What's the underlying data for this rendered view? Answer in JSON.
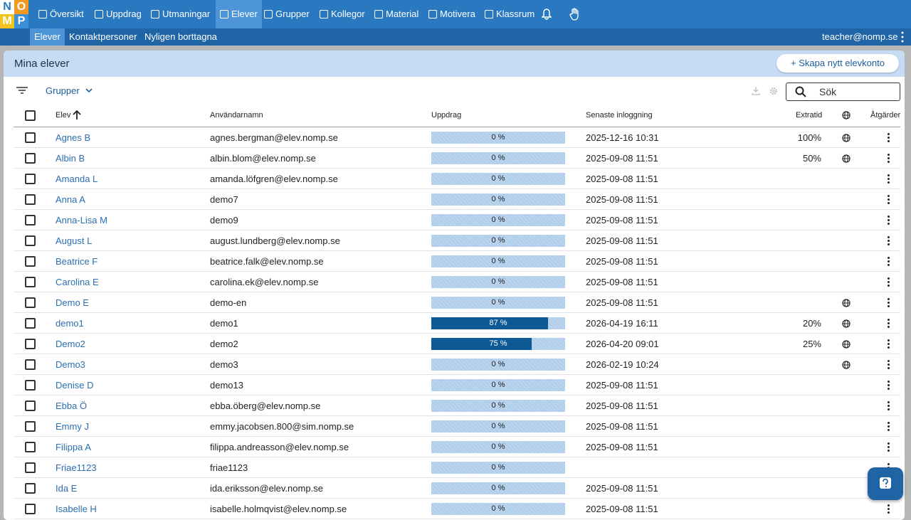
{
  "logo": [
    "N",
    "O",
    "M",
    "P"
  ],
  "nav": {
    "items": [
      "Översikt",
      "Uppdrag",
      "Utmaningar",
      "Elever",
      "Grupper",
      "Kollegor",
      "Material",
      "Motivera",
      "Klassrum"
    ],
    "active": 3
  },
  "subnav": {
    "items": [
      "Elever",
      "Kontaktpersoner",
      "Nyligen borttagna"
    ],
    "active": 0,
    "user": "teacher@nomp.se"
  },
  "panel": {
    "title": "Mina elever",
    "create_button": "+ Skapa nytt elevkonto",
    "group_filter": "Grupper",
    "search_placeholder": "Sök"
  },
  "table": {
    "headers": {
      "student": "Elev",
      "username": "Användarnamn",
      "assignments": "Uppdrag",
      "last_login": "Senaste inloggning",
      "extra_time": "Extratid",
      "actions": "Åtgärder"
    },
    "rows": [
      {
        "student": "Agnes B",
        "username": "agnes.bergman@elev.nomp.se",
        "progress": 0,
        "progress_label": "0 %",
        "last_login": "2025-12-16 10:31",
        "extra_time": "100%",
        "globe": true
      },
      {
        "student": "Albin B",
        "username": "albin.blom@elev.nomp.se",
        "progress": 0,
        "progress_label": "0 %",
        "last_login": "2025-09-08 11:51",
        "extra_time": "50%",
        "globe": true
      },
      {
        "student": "Amanda L",
        "username": "amanda.löfgren@elev.nomp.se",
        "progress": 0,
        "progress_label": "0 %",
        "last_login": "2025-09-08 11:51",
        "globe": false
      },
      {
        "student": "Anna A",
        "username": "demo7",
        "progress": 0,
        "progress_label": "0 %",
        "last_login": "2025-09-08 11:51",
        "globe": false
      },
      {
        "student": "Anna-Lisa M",
        "username": "demo9",
        "progress": 0,
        "progress_label": "0 %",
        "last_login": "2025-09-08 11:51",
        "globe": false
      },
      {
        "student": "August L",
        "username": "august.lundberg@elev.nomp.se",
        "progress": 0,
        "progress_label": "0 %",
        "last_login": "2025-09-08 11:51",
        "globe": false
      },
      {
        "student": "Beatrice F",
        "username": "beatrice.falk@elev.nomp.se",
        "progress": 0,
        "progress_label": "0 %",
        "last_login": "2025-09-08 11:51",
        "globe": false
      },
      {
        "student": "Carolina E",
        "username": "carolina.ek@elev.nomp.se",
        "progress": 0,
        "progress_label": "0 %",
        "last_login": "2025-09-08 11:51",
        "globe": false
      },
      {
        "student": "Demo E",
        "username": "demo-en",
        "progress": 0,
        "progress_label": "0 %",
        "last_login": "2025-09-08 11:51",
        "globe": true
      },
      {
        "student": "demo1",
        "username": "demo1",
        "progress": 87,
        "progress_label": "87 %",
        "last_login": "2026-04-19 16:11",
        "extra_time": "20%",
        "globe": true
      },
      {
        "student": "Demo2",
        "username": "demo2",
        "progress": 75,
        "progress_label": "75 %",
        "last_login": "2026-04-20 09:01",
        "extra_time": "25%",
        "globe": true
      },
      {
        "student": "Demo3",
        "username": "demo3",
        "progress": 0,
        "progress_label": "0 %",
        "last_login": "2026-02-19 10:24",
        "globe": true
      },
      {
        "student": "Denise D",
        "username": "demo13",
        "progress": 0,
        "progress_label": "0 %",
        "last_login": "2025-09-08 11:51",
        "globe": false
      },
      {
        "student": "Ebba Ö",
        "username": "ebba.öberg@elev.nomp.se",
        "progress": 0,
        "progress_label": "0 %",
        "last_login": "2025-09-08 11:51",
        "globe": false
      },
      {
        "student": "Emmy J",
        "username": "emmy.jacobsen.800@sim.nomp.se",
        "progress": 0,
        "progress_label": "0 %",
        "last_login": "2025-09-08 11:51",
        "globe": false
      },
      {
        "student": "Filippa A",
        "username": "filippa.andreasson@elev.nomp.se",
        "progress": 0,
        "progress_label": "0 %",
        "last_login": "2025-09-08 11:51",
        "globe": false
      },
      {
        "student": "Friae1123",
        "username": "friae1123",
        "progress": 0,
        "progress_label": "0 %",
        "globe": false
      },
      {
        "student": "Ida E",
        "username": "ida.eriksson@elev.nomp.se",
        "progress": 0,
        "progress_label": "0 %",
        "last_login": "2025-09-08 11:51",
        "globe": false
      },
      {
        "student": "Isabelle H",
        "username": "isabelle.holmqvist@elev.nomp.se",
        "progress": 0,
        "progress_label": "0 %",
        "last_login": "2025-09-08 11:51",
        "globe": false
      }
    ]
  }
}
